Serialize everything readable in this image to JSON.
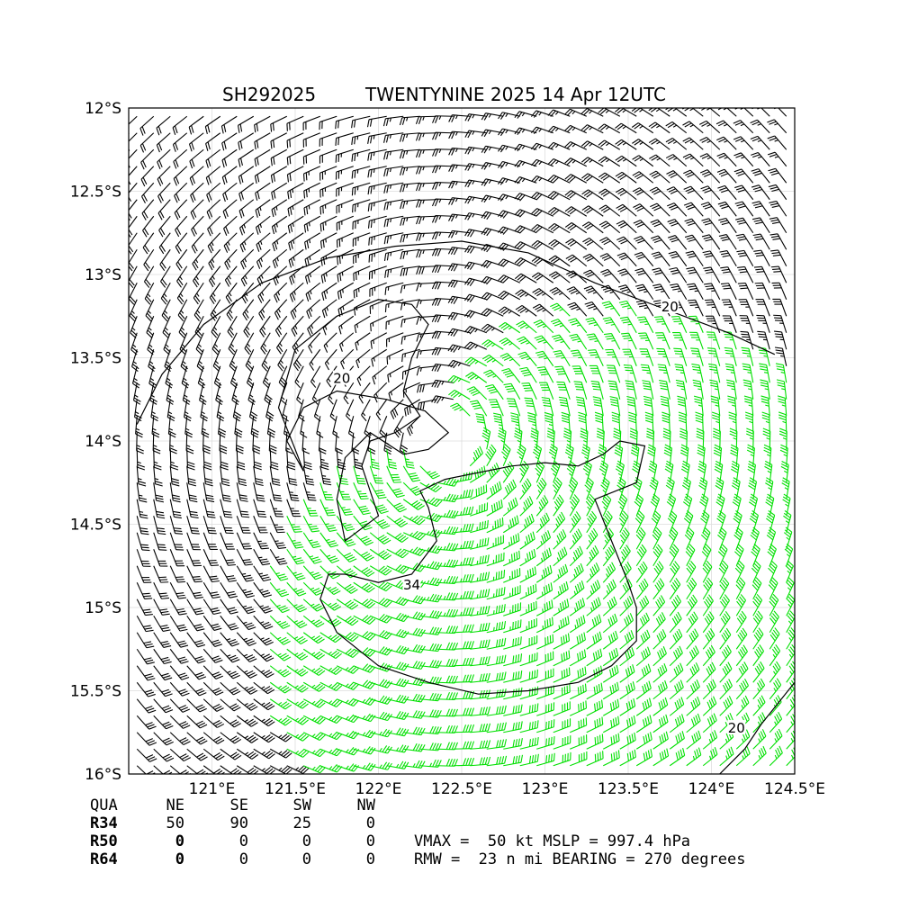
{
  "chart_data": {
    "type": "wind_barb_map",
    "title_left": "SH292025",
    "title_right": "TWENTYNINE 2025 14 Apr 12UTC",
    "xlim": [
      120.5,
      124.5
    ],
    "ylim": [
      -16,
      -12
    ],
    "x_ticks": [
      {
        "value": 121.0,
        "label": "121°E"
      },
      {
        "value": 121.5,
        "label": "121.5°E"
      },
      {
        "value": 122.0,
        "label": "122°E"
      },
      {
        "value": 122.5,
        "label": "122.5°E"
      },
      {
        "value": 123.0,
        "label": "123°E"
      },
      {
        "value": 123.5,
        "label": "123.5°E"
      },
      {
        "value": 124.0,
        "label": "124°E"
      },
      {
        "value": 124.5,
        "label": "124.5°E"
      }
    ],
    "y_ticks": [
      {
        "value": -12.0,
        "label": "12°S"
      },
      {
        "value": -12.5,
        "label": "12.5°S"
      },
      {
        "value": -13.0,
        "label": "13°S"
      },
      {
        "value": -13.5,
        "label": "13.5°S"
      },
      {
        "value": -14.0,
        "label": "14°S"
      },
      {
        "value": -14.5,
        "label": "14.5°S"
      },
      {
        "value": -15.0,
        "label": "15°S"
      },
      {
        "value": -15.5,
        "label": "15.5°S"
      },
      {
        "value": -16.0,
        "label": "16°S"
      }
    ],
    "storm_center": {
      "lon": 122.4,
      "lat": -14.0
    },
    "grid": true,
    "barb_colors": {
      "lt34": "#000000",
      "34to50": "#00e000",
      "50to64": "#f0c020",
      "other": "#808080"
    },
    "contours": [
      {
        "label": "20",
        "label_pos": {
          "lon": 123.75,
          "lat": -13.2
        },
        "points": [
          [
            120.55,
            -13.9
          ],
          [
            120.7,
            -13.6
          ],
          [
            120.95,
            -13.3
          ],
          [
            121.3,
            -13.05
          ],
          [
            121.7,
            -12.9
          ],
          [
            122.1,
            -12.83
          ],
          [
            122.5,
            -12.8
          ],
          [
            122.9,
            -12.87
          ],
          [
            123.3,
            -13.05
          ],
          [
            123.7,
            -13.2
          ],
          [
            124.1,
            -13.35
          ],
          [
            124.38,
            -13.48
          ]
        ]
      },
      {
        "label": "20",
        "label_pos": {
          "lon": 121.78,
          "lat": -13.63
        },
        "points": [
          [
            122.15,
            -14.08
          ],
          [
            122.3,
            -14.05
          ],
          [
            122.42,
            -13.95
          ],
          [
            122.28,
            -13.82
          ],
          [
            122.05,
            -13.75
          ],
          [
            121.75,
            -13.7
          ],
          [
            121.55,
            -13.8
          ],
          [
            121.45,
            -14.0
          ],
          [
            121.55,
            -14.18
          ],
          [
            121.5,
            -14.05
          ],
          [
            121.4,
            -13.8
          ],
          [
            121.5,
            -13.45
          ],
          [
            121.75,
            -13.25
          ],
          [
            122.0,
            -13.15
          ],
          [
            122.2,
            -13.18
          ],
          [
            122.3,
            -13.3
          ],
          [
            122.2,
            -13.5
          ],
          [
            122.15,
            -13.7
          ],
          [
            122.25,
            -13.85
          ],
          [
            122.1,
            -13.95
          ],
          [
            121.95,
            -14.0
          ],
          [
            121.9,
            -14.15
          ],
          [
            122.0,
            -14.45
          ],
          [
            121.8,
            -14.6
          ],
          [
            121.75,
            -14.35
          ],
          [
            121.8,
            -14.1
          ],
          [
            121.95,
            -13.95
          ],
          [
            122.15,
            -14.08
          ]
        ]
      },
      {
        "label": "34",
        "label_pos": {
          "lon": 122.2,
          "lat": -14.87
        },
        "points": [
          [
            122.4,
            -14.23
          ],
          [
            122.55,
            -14.2
          ],
          [
            122.8,
            -14.15
          ],
          [
            123.0,
            -14.13
          ],
          [
            123.2,
            -14.15
          ],
          [
            123.35,
            -14.08
          ],
          [
            123.45,
            -14.0
          ],
          [
            123.6,
            -14.03
          ],
          [
            123.55,
            -14.25
          ],
          [
            123.3,
            -14.35
          ],
          [
            123.4,
            -14.6
          ],
          [
            123.5,
            -14.85
          ],
          [
            123.55,
            -15.0
          ],
          [
            123.55,
            -15.2
          ],
          [
            123.4,
            -15.35
          ],
          [
            123.2,
            -15.45
          ],
          [
            122.9,
            -15.5
          ],
          [
            122.6,
            -15.52
          ],
          [
            122.3,
            -15.45
          ],
          [
            122.0,
            -15.35
          ],
          [
            121.75,
            -15.15
          ],
          [
            121.65,
            -14.95
          ],
          [
            121.7,
            -14.8
          ],
          [
            121.8,
            -14.8
          ],
          [
            122.0,
            -14.85
          ],
          [
            122.2,
            -14.8
          ],
          [
            122.35,
            -14.6
          ],
          [
            122.3,
            -14.4
          ],
          [
            122.25,
            -14.3
          ],
          [
            122.4,
            -14.23
          ]
        ]
      },
      {
        "label": "20",
        "label_pos": {
          "lon": 124.15,
          "lat": -15.73
        },
        "points": [
          [
            124.05,
            -16.0
          ],
          [
            124.2,
            -15.85
          ],
          [
            124.3,
            -15.7
          ],
          [
            124.42,
            -15.55
          ],
          [
            124.5,
            -15.45
          ]
        ]
      }
    ]
  },
  "table": {
    "header": [
      "QUA",
      "NE",
      "SE",
      "SW",
      "NW"
    ],
    "rows": [
      {
        "label": "R34",
        "values": [
          "50",
          "90",
          "25",
          "0"
        ]
      },
      {
        "label": "R50",
        "values": [
          "0",
          "0",
          "0",
          "0"
        ]
      },
      {
        "label": "R64",
        "values": [
          "0",
          "0",
          "0",
          "0"
        ]
      }
    ]
  },
  "info": {
    "line1": "VMAX =  50 kt MSLP = 997.4 hPa",
    "line2": "RMW =  23 n mi BEARING = 270 degrees"
  }
}
